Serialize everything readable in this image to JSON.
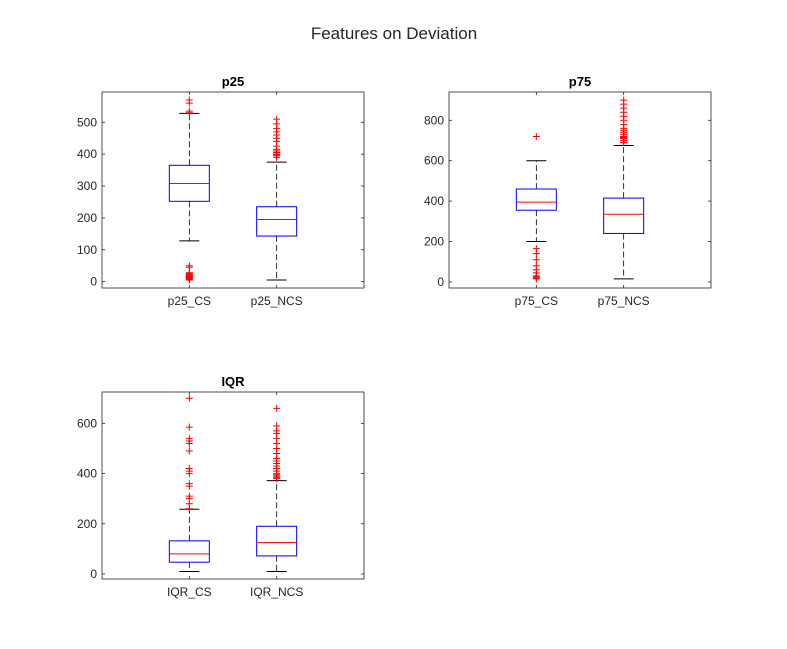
{
  "figure": {
    "title": "Features on Deviation",
    "colors": {
      "box": "#0000ff",
      "median": "#ff0000",
      "whisker": "#000000",
      "outlier": "#ff0000",
      "axis": "#262626"
    }
  },
  "chart_data": [
    {
      "type": "box",
      "title": "p25",
      "xlabel": "",
      "ylabel": "",
      "ylim": [
        -20,
        595
      ],
      "yticks": [
        0,
        100,
        200,
        300,
        400,
        500
      ],
      "categories": [
        "p25_CS",
        "p25_NCS"
      ],
      "boxes": [
        {
          "name": "p25_CS",
          "q1": 252,
          "median": 308,
          "q3": 365,
          "whisker_low": 128,
          "whisker_high": 528,
          "outliers": [
            5,
            8,
            10,
            12,
            14,
            16,
            18,
            20,
            22,
            25,
            28,
            45,
            50,
            530,
            535,
            560,
            570
          ]
        },
        {
          "name": "p25_NCS",
          "q1": 143,
          "median": 195,
          "q3": 235,
          "whisker_low": 5,
          "whisker_high": 375,
          "outliers": [
            390,
            395,
            398,
            400,
            405,
            410,
            415,
            425,
            440,
            450,
            460,
            470,
            480,
            495,
            510
          ]
        }
      ]
    },
    {
      "type": "box",
      "title": "p75",
      "xlabel": "",
      "ylabel": "",
      "ylim": [
        -30,
        940
      ],
      "yticks": [
        0,
        200,
        400,
        600,
        800
      ],
      "categories": [
        "p75_CS",
        "p75_NCS"
      ],
      "boxes": [
        {
          "name": "p75_CS",
          "q1": 355,
          "median": 395,
          "q3": 460,
          "whisker_low": 200,
          "whisker_high": 600,
          "outliers": [
            15,
            20,
            25,
            30,
            45,
            60,
            80,
            110,
            140,
            165,
            720
          ]
        },
        {
          "name": "p75_NCS",
          "q1": 240,
          "median": 335,
          "q3": 415,
          "whisker_low": 15,
          "whisker_high": 675,
          "outliers": [
            690,
            700,
            710,
            715,
            720,
            730,
            740,
            750,
            760,
            780,
            800,
            820,
            840,
            860,
            880,
            900
          ]
        }
      ]
    },
    {
      "type": "box",
      "title": "IQR",
      "xlabel": "",
      "ylabel": "",
      "ylim": [
        -20,
        725
      ],
      "yticks": [
        0,
        200,
        400,
        600
      ],
      "categories": [
        "IQR_CS",
        "IQR_NCS"
      ],
      "boxes": [
        {
          "name": "IQR_CS",
          "q1": 47,
          "median": 80,
          "q3": 132,
          "whisker_low": 10,
          "whisker_high": 258,
          "outliers": [
            260,
            280,
            300,
            310,
            350,
            360,
            400,
            410,
            420,
            490,
            520,
            530,
            540,
            585,
            700
          ]
        },
        {
          "name": "IQR_NCS",
          "q1": 72,
          "median": 125,
          "q3": 190,
          "whisker_low": 10,
          "whisker_high": 372,
          "outliers": [
            380,
            385,
            390,
            395,
            400,
            410,
            420,
            430,
            440,
            450,
            460,
            480,
            500,
            520,
            540,
            560,
            570,
            590,
            660
          ]
        }
      ]
    }
  ]
}
